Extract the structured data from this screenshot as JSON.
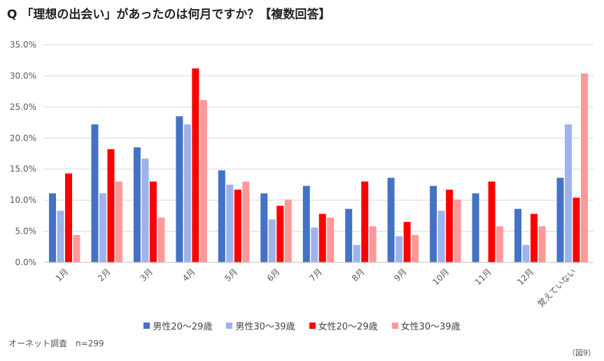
{
  "title": "Q 「理想の出会い」があったのは何月ですか？【複数回答】",
  "source": "オーネット調査　n=299",
  "figure_label": "（図9）",
  "chart_data": {
    "type": "bar",
    "title": "Q 「理想の出会い」があったのは何月ですか？【複数回答】",
    "categories": [
      "1月",
      "2月",
      "3月",
      "4月",
      "5月",
      "6月",
      "7月",
      "8月",
      "9月",
      "10月",
      "11月",
      "12月",
      "覚えていない"
    ],
    "series": [
      {
        "name": "男性20〜29歳",
        "color": "#4472C4",
        "values": [
          11.1,
          22.2,
          18.5,
          23.5,
          14.8,
          11.1,
          12.3,
          8.6,
          13.6,
          12.3,
          11.1,
          8.6,
          13.6
        ]
      },
      {
        "name": "男性30〜39歳",
        "color": "#9DB3EA",
        "values": [
          8.3,
          11.1,
          16.7,
          22.2,
          12.5,
          6.9,
          5.6,
          2.8,
          4.2,
          8.3,
          0,
          2.8,
          22.2
        ]
      },
      {
        "name": "女性20〜29歳",
        "color": "#FF0000",
        "values": [
          14.3,
          18.2,
          13.0,
          31.2,
          11.7,
          9.1,
          7.8,
          13.0,
          6.5,
          11.7,
          13.0,
          7.8,
          10.4
        ]
      },
      {
        "name": "女性30〜39歳",
        "color": "#FF9999",
        "values": [
          4.4,
          13.0,
          7.2,
          26.1,
          13.0,
          10.1,
          7.2,
          5.8,
          4.4,
          10.1,
          5.8,
          5.8,
          30.4
        ]
      }
    ],
    "y_ticks": [
      "0.0%",
      "5.0%",
      "10.0%",
      "15.0%",
      "20.0%",
      "25.0%",
      "30.0%",
      "35.0%"
    ],
    "ylim": [
      0,
      35
    ],
    "ylabel": "",
    "xlabel": "",
    "grid": true,
    "legend_position": "bottom"
  }
}
